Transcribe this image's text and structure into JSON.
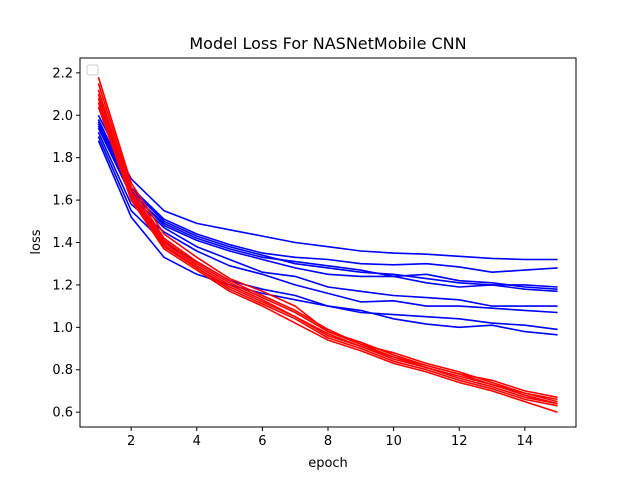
{
  "chart_data": {
    "type": "line",
    "title": "Model Loss For NASNetMobile CNN",
    "xlabel": "epoch",
    "ylabel": "loss",
    "xlim": [
      0.44,
      15.56
    ],
    "ylim": [
      0.53,
      2.27
    ],
    "x_ticks": [
      2,
      4,
      6,
      8,
      10,
      12,
      14
    ],
    "y_ticks": [
      0.6,
      0.8,
      1.0,
      1.2,
      1.4,
      1.6,
      1.8,
      2.0,
      2.2
    ],
    "x_tick_labels": [
      "2",
      "4",
      "6",
      "8",
      "10",
      "12",
      "14"
    ],
    "y_tick_labels": [
      "0.6",
      "0.8",
      "1.0",
      "1.2",
      "1.4",
      "1.6",
      "1.8",
      "2.0",
      "2.2"
    ],
    "grid": false,
    "legend": {
      "placement": "upper-left",
      "entries": []
    },
    "colors": {
      "training": "#0000ff",
      "validation": "#ff0000"
    },
    "x": [
      1,
      2,
      3,
      4,
      5,
      6,
      7,
      8,
      9,
      10,
      11,
      12,
      13,
      14,
      15
    ],
    "series": [
      {
        "group": "blue",
        "color": "#0000ff",
        "values": [
          2.0,
          1.7,
          1.55,
          1.49,
          1.46,
          1.43,
          1.4,
          1.38,
          1.36,
          1.35,
          1.345,
          1.335,
          1.325,
          1.32,
          1.32
        ]
      },
      {
        "group": "blue",
        "color": "#0000ff",
        "values": [
          1.98,
          1.66,
          1.51,
          1.44,
          1.39,
          1.35,
          1.33,
          1.32,
          1.3,
          1.295,
          1.3,
          1.285,
          1.26,
          1.27,
          1.28
        ]
      },
      {
        "group": "blue",
        "color": "#0000ff",
        "values": [
          1.97,
          1.65,
          1.5,
          1.43,
          1.38,
          1.34,
          1.3,
          1.28,
          1.26,
          1.25,
          1.23,
          1.21,
          1.2,
          1.2,
          1.19
        ]
      },
      {
        "group": "blue",
        "color": "#0000ff",
        "values": [
          1.95,
          1.63,
          1.49,
          1.42,
          1.37,
          1.33,
          1.31,
          1.29,
          1.27,
          1.24,
          1.25,
          1.22,
          1.21,
          1.19,
          1.18
        ]
      },
      {
        "group": "blue",
        "color": "#0000ff",
        "values": [
          1.96,
          1.64,
          1.48,
          1.41,
          1.36,
          1.32,
          1.28,
          1.25,
          1.24,
          1.24,
          1.21,
          1.19,
          1.2,
          1.18,
          1.17
        ]
      },
      {
        "group": "blue",
        "color": "#0000ff",
        "values": [
          1.94,
          1.62,
          1.47,
          1.38,
          1.32,
          1.26,
          1.24,
          1.19,
          1.17,
          1.15,
          1.14,
          1.13,
          1.1,
          1.1,
          1.1
        ]
      },
      {
        "group": "blue",
        "color": "#0000ff",
        "values": [
          1.92,
          1.58,
          1.45,
          1.36,
          1.29,
          1.25,
          1.2,
          1.16,
          1.12,
          1.125,
          1.1,
          1.1,
          1.09,
          1.08,
          1.07
        ]
      },
      {
        "group": "blue",
        "color": "#0000ff",
        "values": [
          1.9,
          1.55,
          1.4,
          1.31,
          1.22,
          1.18,
          1.15,
          1.1,
          1.07,
          1.06,
          1.05,
          1.04,
          1.02,
          1.01,
          0.99
        ]
      },
      {
        "group": "blue",
        "color": "#0000ff",
        "values": [
          1.88,
          1.52,
          1.33,
          1.25,
          1.2,
          1.16,
          1.13,
          1.1,
          1.08,
          1.04,
          1.015,
          1.0,
          1.01,
          0.98,
          0.965
        ]
      },
      {
        "group": "red",
        "color": "#ff0000",
        "values": [
          2.18,
          1.68,
          1.44,
          1.33,
          1.23,
          1.17,
          1.1,
          0.98,
          0.93,
          0.87,
          0.82,
          0.78,
          0.75,
          0.7,
          0.67
        ]
      },
      {
        "group": "red",
        "color": "#ff0000",
        "values": [
          2.15,
          1.66,
          1.42,
          1.31,
          1.22,
          1.15,
          1.08,
          0.99,
          0.92,
          0.88,
          0.83,
          0.79,
          0.74,
          0.69,
          0.66
        ]
      },
      {
        "group": "red",
        "color": "#ff0000",
        "values": [
          2.12,
          1.64,
          1.41,
          1.3,
          1.21,
          1.14,
          1.07,
          0.98,
          0.92,
          0.86,
          0.82,
          0.78,
          0.73,
          0.69,
          0.65
        ]
      },
      {
        "group": "red",
        "color": "#ff0000",
        "values": [
          2.1,
          1.63,
          1.4,
          1.29,
          1.2,
          1.13,
          1.05,
          0.97,
          0.91,
          0.86,
          0.81,
          0.77,
          0.73,
          0.68,
          0.64
        ]
      },
      {
        "group": "red",
        "color": "#ff0000",
        "values": [
          2.08,
          1.62,
          1.39,
          1.28,
          1.19,
          1.12,
          1.05,
          0.96,
          0.91,
          0.85,
          0.81,
          0.76,
          0.72,
          0.67,
          0.64
        ]
      },
      {
        "group": "red",
        "color": "#ff0000",
        "values": [
          2.06,
          1.61,
          1.38,
          1.28,
          1.18,
          1.11,
          1.04,
          0.95,
          0.9,
          0.84,
          0.8,
          0.75,
          0.71,
          0.66,
          0.63
        ]
      },
      {
        "group": "red",
        "color": "#ff0000",
        "values": [
          2.04,
          1.6,
          1.37,
          1.27,
          1.17,
          1.1,
          1.02,
          0.94,
          0.89,
          0.83,
          0.79,
          0.74,
          0.7,
          0.65,
          0.6
        ]
      }
    ]
  }
}
